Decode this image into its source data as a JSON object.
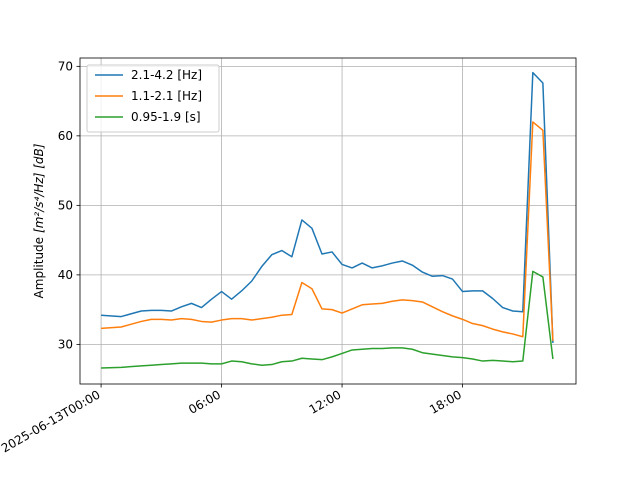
{
  "chart_data": {
    "type": "line",
    "title": "",
    "xlabel": "",
    "ylabel": "Amplitude",
    "ylabel_units": "[m²/s⁴/Hz] [dB]",
    "x_start": "2025-06-13T00:00",
    "x_tick_labels": [
      "2025-06-13T00:00",
      "06:00",
      "12:00",
      "18:00"
    ],
    "x_tick_hours": [
      0,
      6,
      12,
      18
    ],
    "xlim_hours": [
      -1.05,
      23.65
    ],
    "ylim": [
      24.3,
      71.2
    ],
    "y_ticks": [
      30,
      40,
      50,
      60,
      70
    ],
    "grid": true,
    "legend_position": "top-left",
    "x_hours": [
      0,
      1,
      2,
      2.5,
      3,
      3.5,
      4,
      4.5,
      5,
      5.5,
      6,
      6.5,
      7,
      7.5,
      8,
      8.5,
      9,
      9.5,
      10,
      10.5,
      11,
      11.5,
      12,
      12.5,
      13,
      13.5,
      14,
      14.5,
      15,
      15.5,
      16,
      16.5,
      17,
      17.5,
      18,
      18.5,
      19,
      19.5,
      20,
      20.5,
      21,
      21.5,
      22,
      22.5
    ],
    "series": [
      {
        "name": "2.1-4.2 [Hz]",
        "color": "#1f77b4",
        "values": [
          34.2,
          34.0,
          34.8,
          34.9,
          34.9,
          34.8,
          35.4,
          35.9,
          35.3,
          36.5,
          37.6,
          36.5,
          37.7,
          39.1,
          41.2,
          42.9,
          43.5,
          42.6,
          47.9,
          46.7,
          43.0,
          43.3,
          41.5,
          41.0,
          41.7,
          41.0,
          41.3,
          41.7,
          42.0,
          41.4,
          40.4,
          39.8,
          39.9,
          39.4,
          37.6,
          37.7,
          37.7,
          36.6,
          35.3,
          34.8,
          34.7,
          69.1,
          67.6,
          30.2
        ]
      },
      {
        "name": "1.1-2.1 [Hz]",
        "color": "#ff7f0e",
        "values": [
          32.3,
          32.5,
          33.3,
          33.6,
          33.6,
          33.5,
          33.7,
          33.6,
          33.3,
          33.2,
          33.5,
          33.7,
          33.7,
          33.5,
          33.7,
          33.9,
          34.2,
          34.3,
          38.9,
          38.0,
          35.1,
          35.0,
          34.5,
          35.1,
          35.7,
          35.8,
          35.9,
          36.2,
          36.4,
          36.3,
          36.1,
          35.4,
          34.7,
          34.1,
          33.6,
          33.0,
          32.7,
          32.2,
          31.8,
          31.5,
          31.1,
          62.0,
          60.8,
          30.5
        ]
      },
      {
        "name": "0.95-1.9 [s]",
        "color": "#2ca02c",
        "values": [
          26.6,
          26.7,
          26.9,
          27.0,
          27.1,
          27.2,
          27.3,
          27.3,
          27.3,
          27.2,
          27.2,
          27.6,
          27.5,
          27.2,
          27.0,
          27.1,
          27.5,
          27.6,
          28.0,
          27.9,
          27.8,
          28.2,
          28.7,
          29.2,
          29.3,
          29.4,
          29.4,
          29.5,
          29.5,
          29.3,
          28.8,
          28.6,
          28.4,
          28.2,
          28.1,
          27.9,
          27.6,
          27.7,
          27.6,
          27.5,
          27.6,
          40.5,
          39.7,
          27.9
        ]
      }
    ]
  }
}
